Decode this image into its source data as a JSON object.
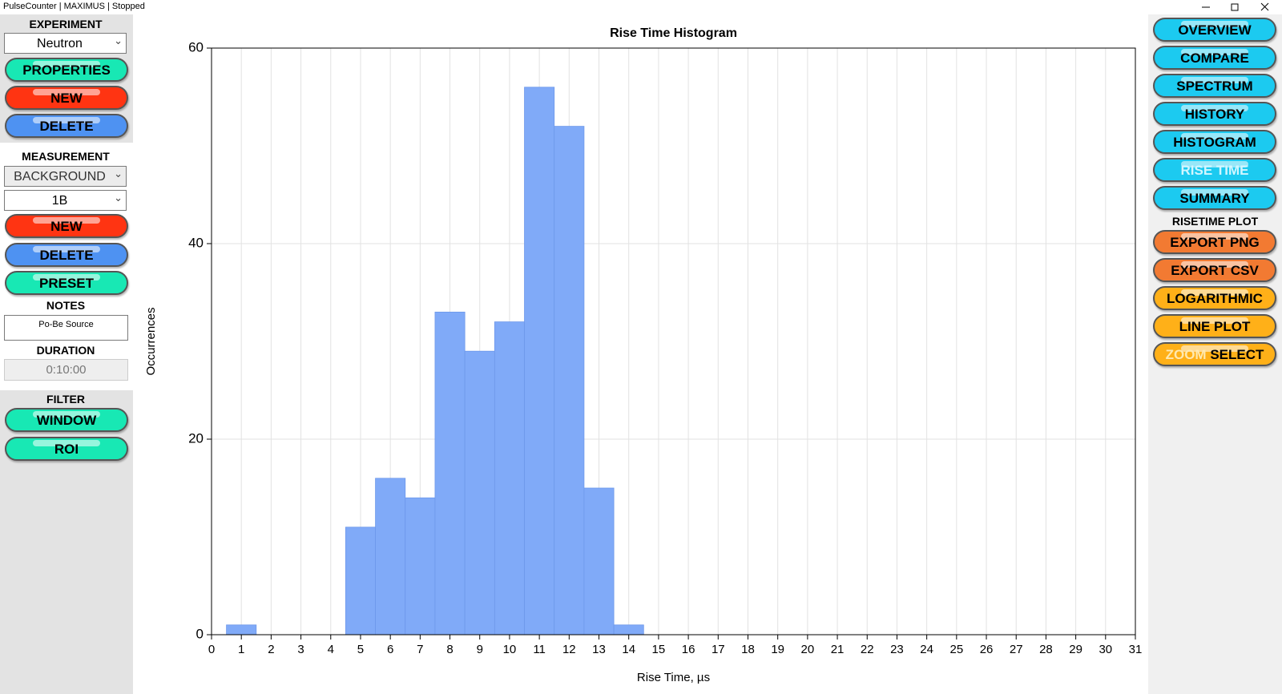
{
  "window": {
    "title": "PulseCounter | MAXIMUS | Stopped"
  },
  "left_panel": {
    "experiment_label": "EXPERIMENT",
    "experiment": "Neutron",
    "experiment_buttons": [
      "PROPERTIES",
      "NEW",
      "DELETE"
    ],
    "measurement_label": "MEASUREMENT",
    "measurement_type": "BACKGROUND",
    "measurement": "1B",
    "measurement_buttons": [
      "NEW",
      "DELETE",
      "PRESET"
    ],
    "notes_label": "NOTES",
    "notes": "Po-Be Source",
    "duration_label": "DURATION",
    "duration": "0:10:00",
    "filter_label": "FILTER",
    "filter_buttons": [
      "WINDOW",
      "ROI"
    ]
  },
  "right_panel": {
    "view_buttons": [
      "OVERVIEW",
      "COMPARE",
      "SPECTRUM",
      "HISTORY",
      "HISTOGRAM",
      "RISE TIME",
      "SUMMARY"
    ],
    "plot_label": "RISETIME PLOT",
    "plot_buttons": [
      "EXPORT PNG",
      "EXPORT CSV",
      "LOGARITHMIC",
      "LINE PLOT"
    ],
    "zoom_button": [
      "ZOOM",
      "SELECT"
    ]
  },
  "chart_data": {
    "type": "histogram",
    "title": "Rise Time Histogram",
    "x_label": "Rise Time, µs",
    "y_label": "Occurrences",
    "bins": [
      0.5,
      1.5,
      2.5,
      3.5,
      4.5,
      5.5,
      6.5,
      7.5,
      8.5,
      9.5,
      10.5,
      11.5,
      12.5,
      13.5,
      14.5
    ],
    "values": [
      1,
      0,
      0,
      0,
      11,
      16,
      14,
      33,
      29,
      32,
      56,
      52,
      15,
      1
    ],
    "color": "#80aaf8",
    "xlim": [
      0,
      31
    ],
    "xticks": [
      0,
      1,
      2,
      3,
      4,
      5,
      6,
      7,
      8,
      9,
      10,
      11,
      12,
      13,
      14,
      15,
      16,
      17,
      18,
      19,
      20,
      21,
      22,
      23,
      24,
      25,
      26,
      27,
      28,
      29,
      30,
      31
    ],
    "ylim": [
      0,
      60
    ],
    "yticks": [
      0,
      20,
      40,
      60
    ],
    "grid": true
  }
}
